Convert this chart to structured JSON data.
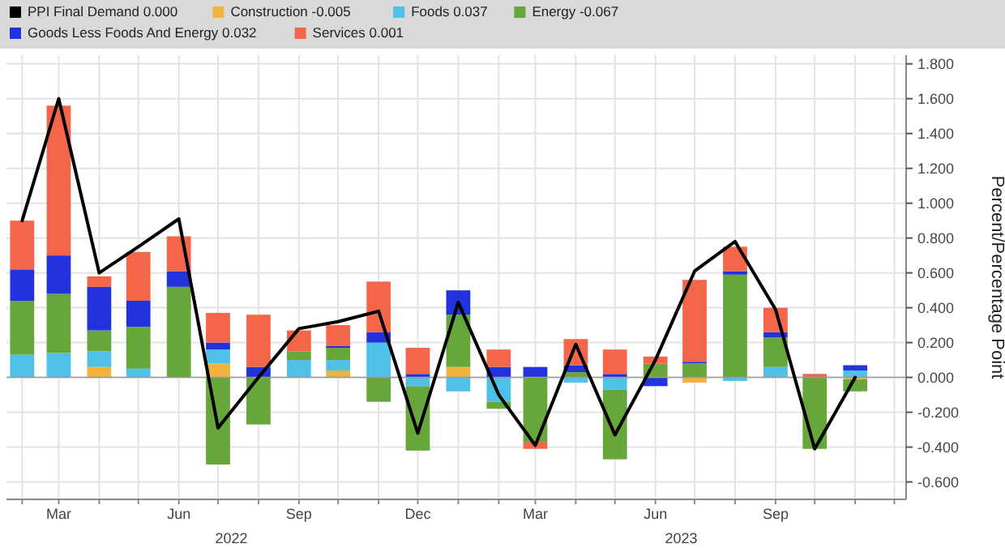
{
  "chart_data": {
    "type": "bar",
    "stacked": true,
    "ylabel": "Percent/Percentage Point",
    "x": [
      "2022-02",
      "2022-03",
      "2022-04",
      "2022-05",
      "2022-06",
      "2022-07",
      "2022-08",
      "2022-09",
      "2022-10",
      "2022-11",
      "2022-12",
      "2023-01",
      "2023-02",
      "2023-03",
      "2023-04",
      "2023-05",
      "2023-06",
      "2023-07",
      "2023-08",
      "2023-09",
      "2023-10",
      "2023-11"
    ],
    "xlim": [
      "2022-01-20",
      "2023-12-10"
    ],
    "xticks": [
      {
        "value": "2022-02-01",
        "label": null
      },
      {
        "value": "2022-03-01",
        "label": "Mar"
      },
      {
        "value": "2022-04-01",
        "label": null
      },
      {
        "value": "2022-05-01",
        "label": null
      },
      {
        "value": "2022-06-01",
        "label": "Jun"
      },
      {
        "value": "2022-07-01",
        "label": null
      },
      {
        "value": "2022-08-01",
        "label": null
      },
      {
        "value": "2022-09-01",
        "label": "Sep"
      },
      {
        "value": "2022-10-01",
        "label": null
      },
      {
        "value": "2022-11-01",
        "label": null
      },
      {
        "value": "2022-12-01",
        "label": "Dec"
      },
      {
        "value": "2023-01-01",
        "label": null
      },
      {
        "value": "2023-02-01",
        "label": null
      },
      {
        "value": "2023-03-01",
        "label": "Mar"
      },
      {
        "value": "2023-04-01",
        "label": null
      },
      {
        "value": "2023-05-01",
        "label": null
      },
      {
        "value": "2023-06-01",
        "label": "Jun"
      },
      {
        "value": "2023-07-01",
        "label": null
      },
      {
        "value": "2023-08-01",
        "label": null
      },
      {
        "value": "2023-09-01",
        "label": "Sep"
      },
      {
        "value": "2023-10-01",
        "label": null
      },
      {
        "value": "2023-11-01",
        "label": null
      },
      {
        "value": "2023-12-01",
        "label": null
      }
    ],
    "ylim": [
      -0.7,
      1.85
    ],
    "yticks": [
      {
        "value": -0.6,
        "label": "-0.600"
      },
      {
        "value": -0.4,
        "label": "-0.400"
      },
      {
        "value": -0.2,
        "label": "-0.200"
      },
      {
        "value": 0,
        "label": "0.000"
      },
      {
        "value": 0.2,
        "label": "0.200"
      },
      {
        "value": 0.4,
        "label": "0.400"
      },
      {
        "value": 0.6,
        "label": "0.600"
      },
      {
        "value": 0.8,
        "label": "0.800"
      },
      {
        "value": 1,
        "label": "1.000"
      },
      {
        "value": 1.2,
        "label": "1.200"
      },
      {
        "value": 1.4,
        "label": "1.400"
      },
      {
        "value": 1.6,
        "label": "1.600"
      },
      {
        "value": 1.8,
        "label": "1.800"
      }
    ],
    "grid": true,
    "legend": "top",
    "series": [
      {
        "name": "PPI Final Demand 0.000",
        "type": "line",
        "color": "#000000",
        "values": [
          0.9,
          1.6,
          0.6,
          0.75,
          0.91,
          -0.29,
          0.0,
          0.28,
          0.32,
          0.38,
          -0.32,
          0.43,
          -0.1,
          -0.39,
          0.19,
          -0.33,
          0.1,
          0.61,
          0.78,
          0.39,
          -0.41,
          0.0
        ]
      },
      {
        "name": "Construction -0.005",
        "color": "#f2b33d",
        "values": [
          0,
          0,
          0.06,
          0,
          0,
          0.08,
          0,
          0,
          0.04,
          0,
          0,
          0.06,
          0,
          0,
          0,
          0,
          0,
          -0.03,
          0,
          0,
          0,
          -0.01
        ]
      },
      {
        "name": "Foods 0.037",
        "color": "#4fc0e8",
        "values": [
          0.13,
          0.14,
          0.09,
          0.05,
          0,
          0.08,
          0,
          0.1,
          0.06,
          0.2,
          -0.05,
          -0.08,
          -0.14,
          0,
          -0.03,
          -0.07,
          0,
          0,
          -0.02,
          0.06,
          0,
          0.04
        ]
      },
      {
        "name": "Energy -0.067",
        "color": "#67a63a",
        "values": [
          0.31,
          0.34,
          0.12,
          0.24,
          0.52,
          -0.5,
          -0.27,
          0.05,
          0.07,
          -0.14,
          -0.37,
          0.3,
          -0.04,
          -0.37,
          0.03,
          -0.4,
          0.08,
          0.08,
          0.59,
          0.17,
          -0.41,
          -0.07
        ]
      },
      {
        "name": "Goods Less Foods And Energy 0.032",
        "color": "#2233dd",
        "values": [
          0.18,
          0.22,
          0.25,
          0.15,
          0.09,
          0.04,
          0.06,
          0,
          0.01,
          0.06,
          0.02,
          0.14,
          0.06,
          0.06,
          0.04,
          0.02,
          -0.05,
          0.01,
          0.02,
          0.03,
          0,
          0.03
        ]
      },
      {
        "name": "Services 0.001",
        "color": "#f4664a",
        "values": [
          0.28,
          0.86,
          0.06,
          0.28,
          0.2,
          0.17,
          0.3,
          0.12,
          0.12,
          0.29,
          0.15,
          0,
          0.1,
          -0.04,
          0.15,
          0.14,
          0.04,
          0.47,
          0.14,
          0.14,
          0.02,
          0
        ]
      }
    ],
    "annotations": [
      "2022",
      "2023"
    ]
  }
}
